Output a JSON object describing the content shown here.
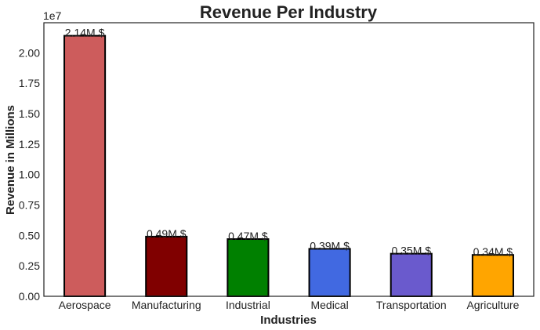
{
  "chart_data": {
    "type": "bar",
    "title": "Revenue Per Industry",
    "xlabel": "Industries",
    "ylabel": "Revenue in Millions",
    "y_offset_label": "1e7",
    "categories": [
      "Aerospace",
      "Manufacturing",
      "Industrial",
      "Medical",
      "Transportation",
      "Agriculture"
    ],
    "values": [
      21400000,
      4900000,
      4700000,
      3900000,
      3500000,
      3400000
    ],
    "data_labels": [
      "2.14M $",
      "0.49M $",
      "0.47M $",
      "0.39M $",
      "0.35M $",
      "0.34M $"
    ],
    "bar_colors": [
      "#cd5c5c",
      "#800000",
      "#008000",
      "#4169e1",
      "#6a5acd",
      "#ffa500"
    ],
    "ylim": [
      0,
      22470000
    ],
    "yticks": [
      0,
      2500000,
      5000000,
      7500000,
      10000000,
      12500000,
      15000000,
      17500000,
      20000000
    ],
    "ytick_labels": [
      "0.00",
      "0.25",
      "0.50",
      "0.75",
      "1.00",
      "1.25",
      "1.50",
      "1.75",
      "2.00"
    ],
    "grid": false,
    "legend": "none"
  }
}
